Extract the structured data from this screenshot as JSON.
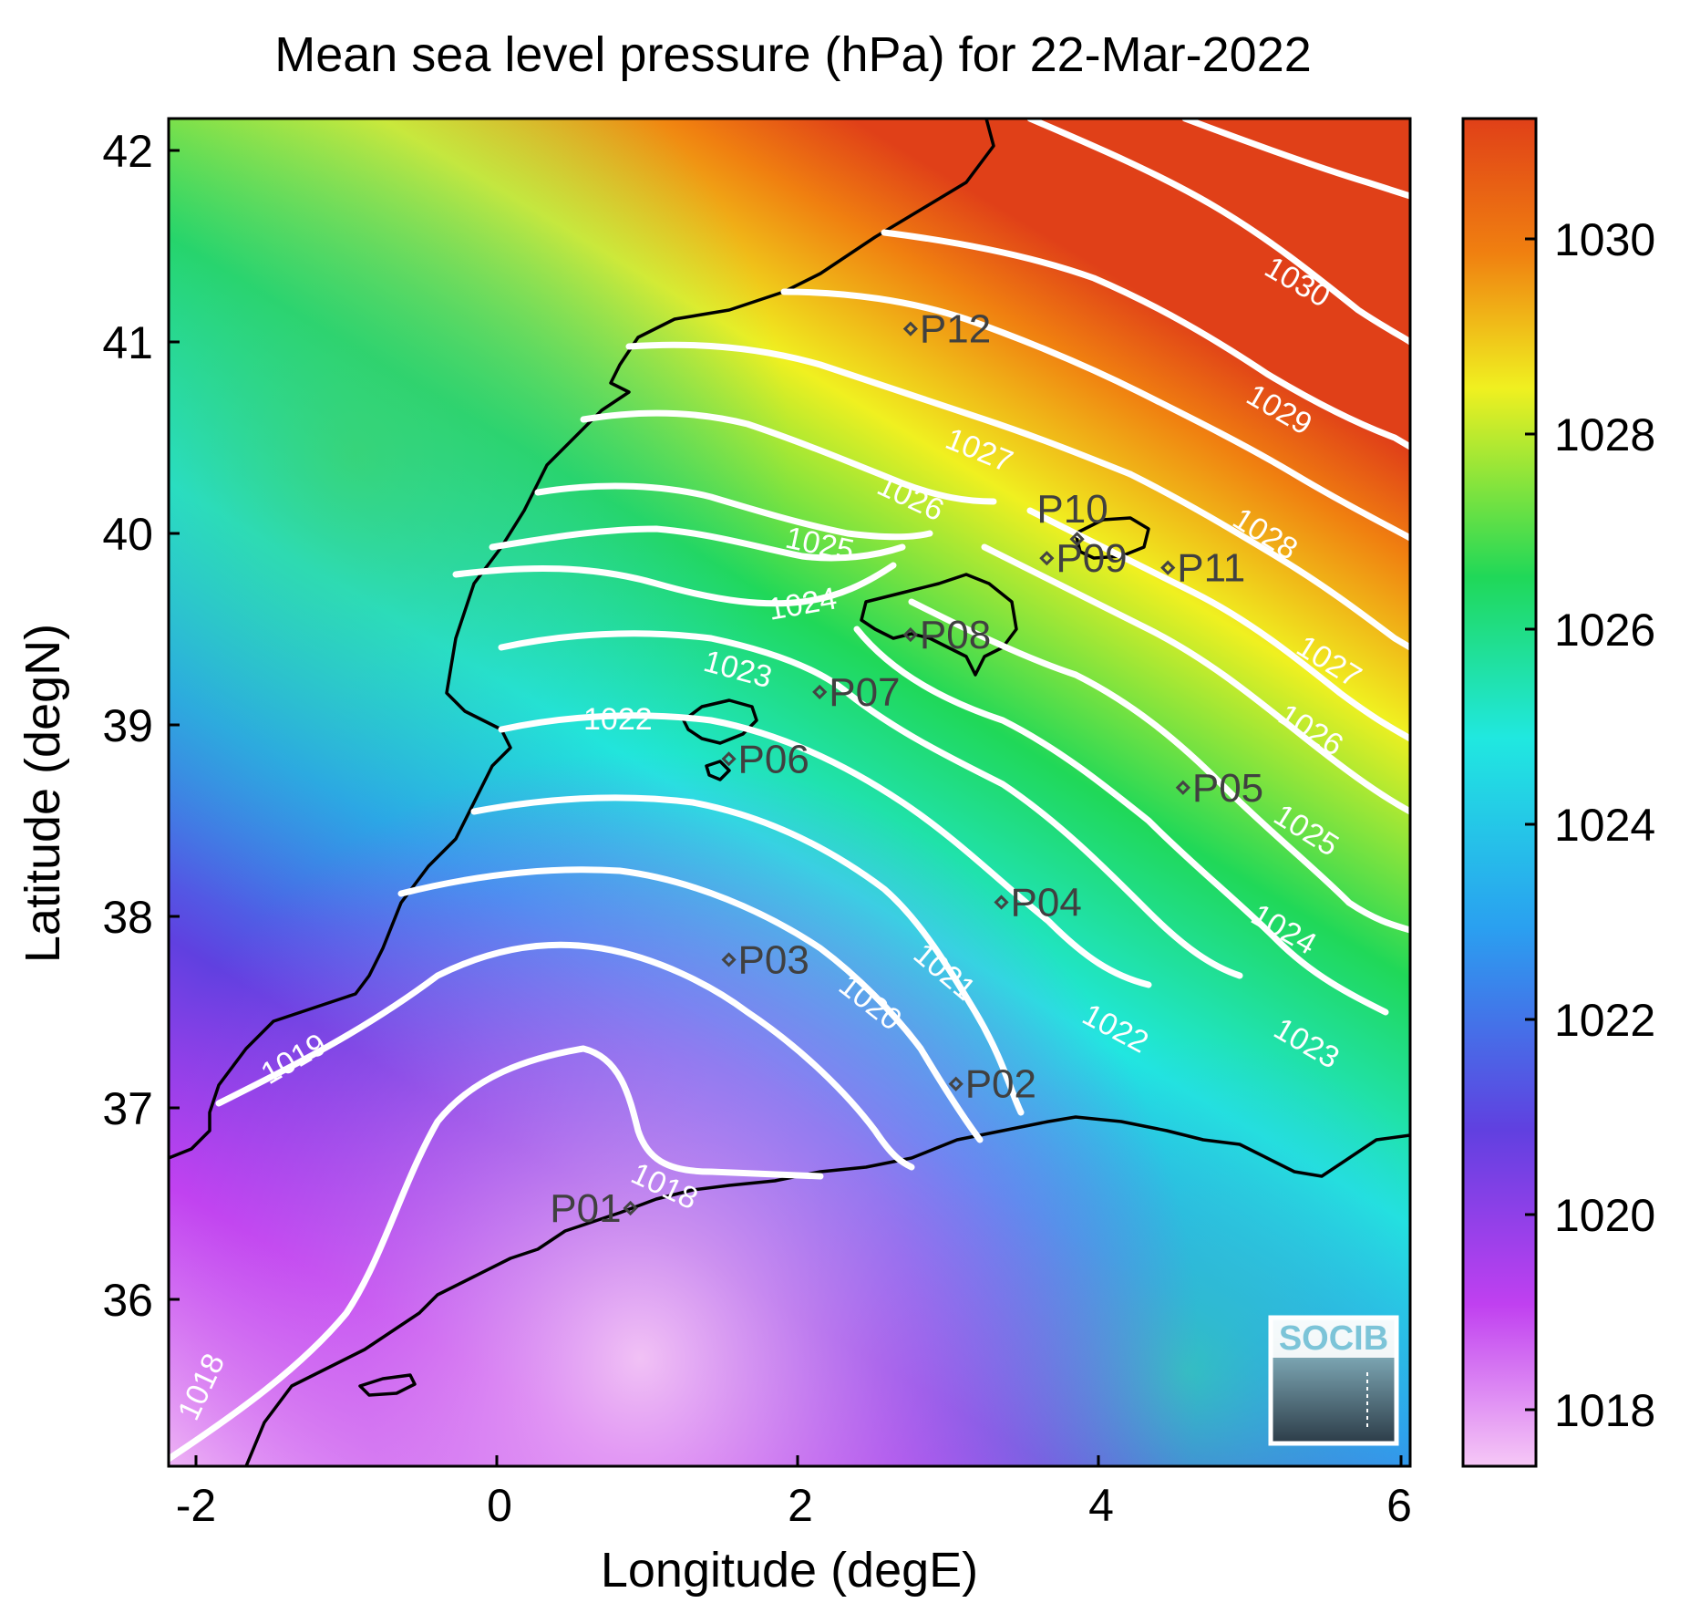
{
  "title": "Mean sea level pressure (hPa) for 22-Mar-2022",
  "axes": {
    "xlabel": "Longitude (degE)",
    "ylabel": "Latitude (degN)",
    "xticks": [
      "-2",
      "0",
      "2",
      "4",
      "6"
    ],
    "yticks": [
      "42",
      "41",
      "40",
      "39",
      "38",
      "37",
      "36"
    ]
  },
  "colorbar": {
    "ticks": [
      "1030",
      "1028",
      "1026",
      "1024",
      "1022",
      "1020",
      "1018"
    ],
    "range": [
      1017.5,
      1031.2
    ],
    "colors": [
      "#f6c8f6",
      "#c040f0",
      "#6040e0",
      "#2aa0f0",
      "#20e8e0",
      "#20d858",
      "#f0f020",
      "#f08010",
      "#e04018"
    ]
  },
  "contours": [
    {
      "label": "1018",
      "value": 1018
    },
    {
      "label": "1018",
      "value": 1018
    },
    {
      "label": "1019",
      "value": 1019
    },
    {
      "label": "1020",
      "value": 1020
    },
    {
      "label": "1021",
      "value": 1021
    },
    {
      "label": "1022",
      "value": 1022
    },
    {
      "label": "1022",
      "value": 1022
    },
    {
      "label": "1023",
      "value": 1023
    },
    {
      "label": "1023",
      "value": 1023
    },
    {
      "label": "1024",
      "value": 1024
    },
    {
      "label": "1024",
      "value": 1024
    },
    {
      "label": "1025",
      "value": 1025
    },
    {
      "label": "1025",
      "value": 1025
    },
    {
      "label": "1026",
      "value": 1026
    },
    {
      "label": "1026",
      "value": 1026
    },
    {
      "label": "1027",
      "value": 1027
    },
    {
      "label": "1027",
      "value": 1027
    },
    {
      "label": "1028",
      "value": 1028
    },
    {
      "label": "1029",
      "value": 1029
    },
    {
      "label": "1030",
      "value": 1030
    }
  ],
  "stations": [
    {
      "label": "P01",
      "lon": 0.85,
      "lat": 36.5
    },
    {
      "label": "P02",
      "lon": 3.0,
      "lat": 37.15
    },
    {
      "label": "P03",
      "lon": 1.5,
      "lat": 37.8
    },
    {
      "label": "P04",
      "lon": 3.3,
      "lat": 38.1
    },
    {
      "label": "P05",
      "lon": 4.5,
      "lat": 38.7
    },
    {
      "label": "P06",
      "lon": 1.5,
      "lat": 38.85
    },
    {
      "label": "P07",
      "lon": 2.1,
      "lat": 39.2
    },
    {
      "label": "P08",
      "lon": 2.7,
      "lat": 39.5
    },
    {
      "label": "P09",
      "lon": 3.6,
      "lat": 39.9
    },
    {
      "label": "P10",
      "lon": 3.8,
      "lat": 40.0
    },
    {
      "label": "P11",
      "lon": 4.4,
      "lat": 39.85
    },
    {
      "label": "P12",
      "lon": 2.7,
      "lat": 41.1
    }
  ],
  "logo": {
    "text": "SOCIB"
  }
}
